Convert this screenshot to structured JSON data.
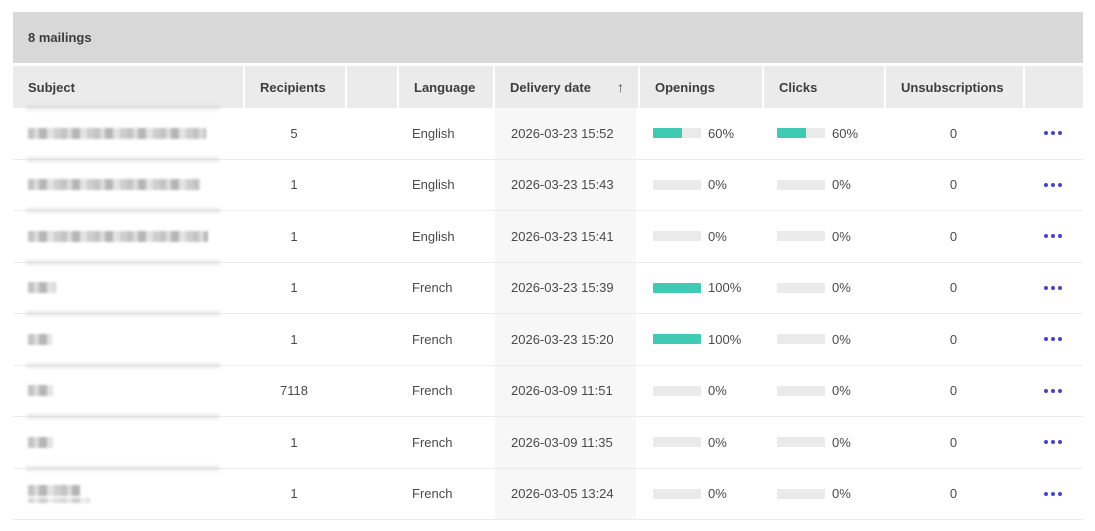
{
  "summary_bar": {
    "label": "8 mailings"
  },
  "table": {
    "columns": [
      {
        "key": "subject",
        "label": "Subject"
      },
      {
        "key": "recipients",
        "label": "Recipients"
      },
      {
        "key": "spacer",
        "label": ""
      },
      {
        "key": "language",
        "label": "Language"
      },
      {
        "key": "delivery_date",
        "label": "Delivery date"
      },
      {
        "key": "openings",
        "label": "Openings"
      },
      {
        "key": "clicks",
        "label": "Clicks"
      },
      {
        "key": "unsubscriptions",
        "label": "Unsubscriptions"
      },
      {
        "key": "actions",
        "label": ""
      }
    ],
    "sort": {
      "column": "delivery_date",
      "direction": "asc",
      "icon": "↑"
    },
    "rows": [
      {
        "subject": {
          "redacted": true,
          "blur_width": 178
        },
        "recipients": "5",
        "language": "English",
        "delivery_date": "2026-03-23 15:52",
        "openings_pct": 60,
        "openings_label": "60%",
        "clicks_pct": 60,
        "clicks_label": "60%",
        "unsubscriptions": "0"
      },
      {
        "subject": {
          "redacted": true,
          "blur_width": 172
        },
        "recipients": "1",
        "language": "English",
        "delivery_date": "2026-03-23 15:43",
        "openings_pct": 0,
        "openings_label": "0%",
        "clicks_pct": 0,
        "clicks_label": "0%",
        "unsubscriptions": "0"
      },
      {
        "subject": {
          "redacted": true,
          "blur_width": 180
        },
        "recipients": "1",
        "language": "English",
        "delivery_date": "2026-03-23 15:41",
        "openings_pct": 0,
        "openings_label": "0%",
        "clicks_pct": 0,
        "clicks_label": "0%",
        "unsubscriptions": "0"
      },
      {
        "subject": {
          "redacted": true,
          "blur_width": 28
        },
        "recipients": "1",
        "language": "French",
        "delivery_date": "2026-03-23 15:39",
        "openings_pct": 100,
        "openings_label": "100%",
        "clicks_pct": 0,
        "clicks_label": "0%",
        "unsubscriptions": "0"
      },
      {
        "subject": {
          "redacted": true,
          "blur_width": 24
        },
        "recipients": "1",
        "language": "French",
        "delivery_date": "2026-03-23 15:20",
        "openings_pct": 100,
        "openings_label": "100%",
        "clicks_pct": 0,
        "clicks_label": "0%",
        "unsubscriptions": "0"
      },
      {
        "subject": {
          "redacted": true,
          "blur_width": 25
        },
        "recipients": "7118",
        "language": "French",
        "delivery_date": "2026-03-09 11:51",
        "openings_pct": 0,
        "openings_label": "0%",
        "clicks_pct": 0,
        "clicks_label": "0%",
        "unsubscriptions": "0"
      },
      {
        "subject": {
          "redacted": true,
          "blur_width": 25
        },
        "recipients": "1",
        "language": "French",
        "delivery_date": "2026-03-09 11:35",
        "openings_pct": 0,
        "openings_label": "0%",
        "clicks_pct": 0,
        "clicks_label": "0%",
        "unsubscriptions": "0"
      },
      {
        "subject": {
          "redacted": true,
          "blur_width": 52,
          "second_line_width": 62
        },
        "recipients": "1",
        "language": "French",
        "delivery_date": "2026-03-05 13:24",
        "openings_pct": 0,
        "openings_label": "0%",
        "clicks_pct": 0,
        "clicks_label": "0%",
        "unsubscriptions": "0"
      }
    ]
  },
  "colors": {
    "bar_fill": "#3fcbb3",
    "bar_track": "#eaeaea",
    "actions_accent": "#4543d2",
    "summary_bg": "#d8d8d8",
    "header_bg": "#ebebeb",
    "sorted_col_bg": "#f7f7f7"
  }
}
